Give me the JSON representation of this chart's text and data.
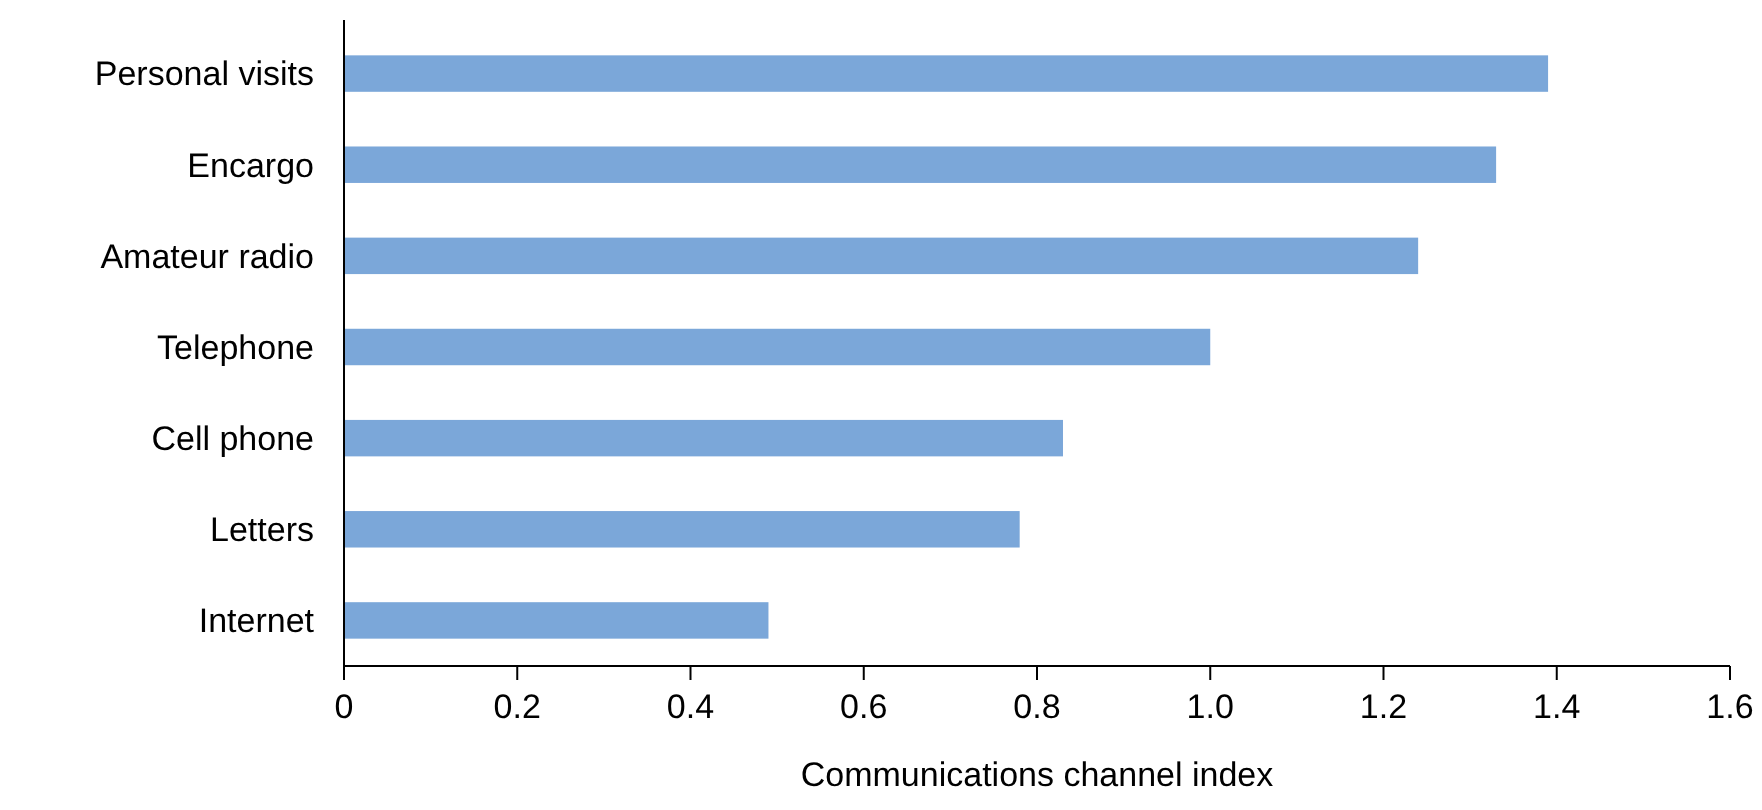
{
  "chart_data": {
    "type": "bar",
    "orientation": "horizontal",
    "xlabel": "Communications channel index",
    "categories": [
      "Personal visits",
      "Encargo",
      "Amateur radio",
      "Telephone",
      "Cell phone",
      "Letters",
      "Internet"
    ],
    "values": [
      1.39,
      1.33,
      1.24,
      1.0,
      0.83,
      0.78,
      0.49
    ],
    "color": "#7ba7d9",
    "xlim": [
      0,
      1.6
    ],
    "xticks": [
      0,
      {
        "value": 0.2,
        "label": "0.2"
      },
      {
        "value": 0.4,
        "label": "0.4"
      },
      {
        "value": 0.6,
        "label": "0.6"
      },
      {
        "value": 0.8,
        "label": "0.8"
      },
      {
        "value": 1,
        "label": "1.0"
      },
      {
        "value": 1.2,
        "label": "1.2"
      },
      {
        "value": 1.4,
        "label": "1.4"
      },
      {
        "value": 1.6,
        "label": "1.6"
      }
    ],
    "grid": false
  }
}
